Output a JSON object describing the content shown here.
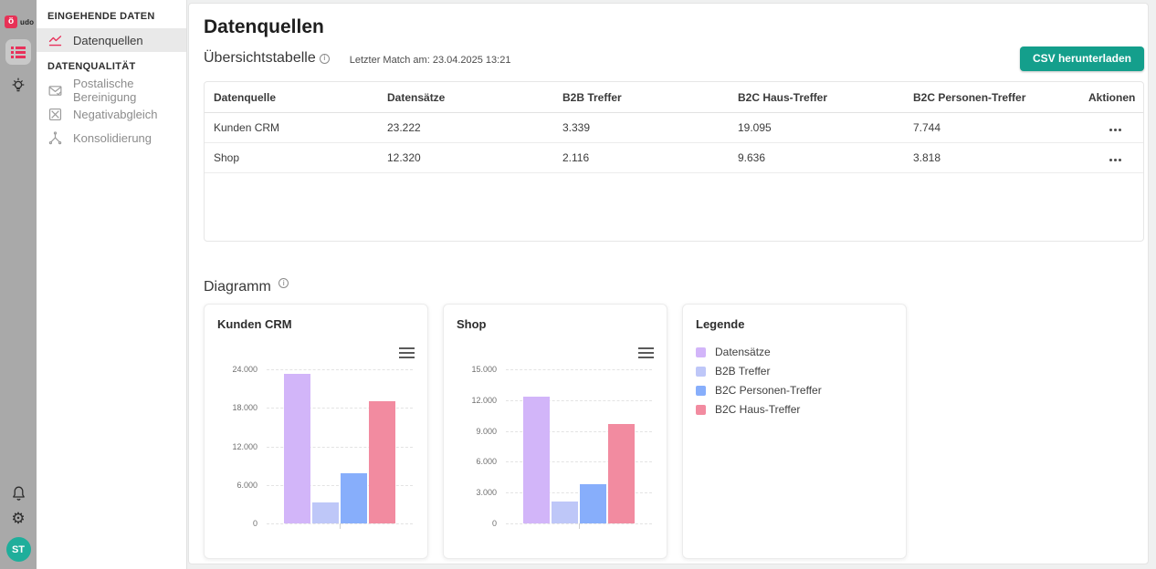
{
  "app": {
    "logo_glyph": "ö",
    "logo_text": "udo",
    "avatar_initials": "ST"
  },
  "sidebar": {
    "sections": [
      {
        "title": "EINGEHENDE DATEN",
        "items": [
          {
            "label": "Datenquellen",
            "active": true
          }
        ]
      },
      {
        "title": "DATENQUALITÄT",
        "items": [
          {
            "label": "Postalische Bereinigung"
          },
          {
            "label": "Negativabgleich"
          },
          {
            "label": "Konsolidierung"
          }
        ]
      }
    ]
  },
  "header": {
    "page_title": "Datenquellen",
    "table_section_title": "Übersichtstabelle",
    "last_match": "Letzter Match am: 23.04.2025 13:21",
    "csv_button_label": "CSV herunterladen"
  },
  "table": {
    "columns": [
      "Datenquelle",
      "Datensätze",
      "B2B Treffer",
      "B2C Haus-Treffer",
      "B2C Personen-Treffer",
      "Aktionen"
    ],
    "rows": [
      {
        "cells": [
          "Kunden CRM",
          "23.222",
          "3.339",
          "19.095",
          "7.744"
        ]
      },
      {
        "cells": [
          "Shop",
          "12.320",
          "2.116",
          "9.636",
          "3.818"
        ]
      }
    ]
  },
  "chart_section": {
    "title": "Diagramm"
  },
  "chart_data": [
    {
      "type": "bar",
      "title": "Kunden CRM",
      "categories": [
        "Datensätze",
        "B2B Treffer",
        "B2C Personen-Treffer",
        "B2C Haus-Treffer"
      ],
      "values": [
        23222,
        3339,
        7744,
        19095
      ],
      "bar_colors": [
        "#d2b5f9",
        "#bec7f8",
        "#87aefb",
        "#f28ba0"
      ],
      "ylim": [
        0,
        24000
      ],
      "yticks": [
        0,
        6000,
        12000,
        18000,
        24000
      ],
      "ytick_labels": [
        "0",
        "6.000",
        "12.000",
        "18.000",
        "24.000"
      ],
      "grid": "horizontal-dashed",
      "legend_position": "separate-card"
    },
    {
      "type": "bar",
      "title": "Shop",
      "categories": [
        "Datensätze",
        "B2B Treffer",
        "B2C Personen-Treffer",
        "B2C Haus-Treffer"
      ],
      "values": [
        12320,
        2116,
        3818,
        9636
      ],
      "bar_colors": [
        "#d2b5f9",
        "#bec7f8",
        "#87aefb",
        "#f28ba0"
      ],
      "ylim": [
        0,
        15000
      ],
      "yticks": [
        0,
        3000,
        6000,
        9000,
        12000,
        15000
      ],
      "ytick_labels": [
        "0",
        "3.000",
        "6.000",
        "9.000",
        "12.000",
        "15.000"
      ],
      "grid": "horizontal-dashed",
      "legend_position": "separate-card"
    }
  ],
  "legend": {
    "title": "Legende",
    "items": [
      {
        "label": "Datensätze",
        "color": "#d2b5f9"
      },
      {
        "label": "B2B Treffer",
        "color": "#bec7f8"
      },
      {
        "label": "B2C Personen-Treffer",
        "color": "#87aefb"
      },
      {
        "label": "B2C Haus-Treffer",
        "color": "#f28ba0"
      }
    ]
  },
  "colors": {
    "accent_pink": "#e8315b",
    "button_teal": "#149f8c",
    "avatar_teal": "#1fae9b",
    "rail_gray": "#a9a9a9"
  }
}
